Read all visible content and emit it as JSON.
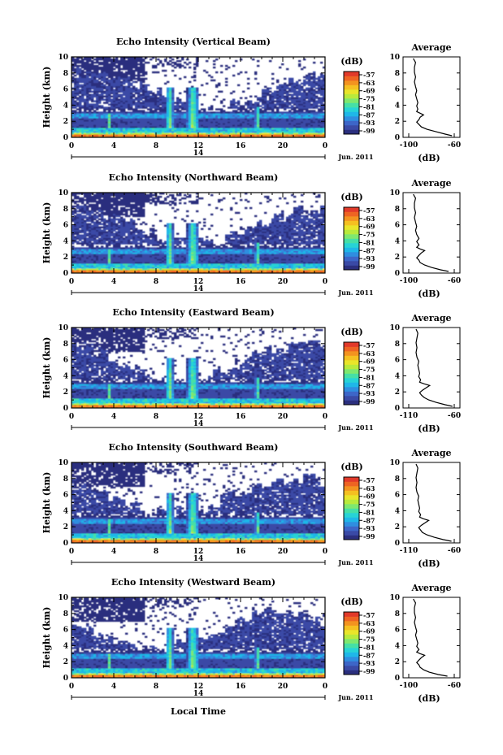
{
  "figure": {
    "xlabel": "Local Time"
  },
  "colorbar": {
    "unit": "(dB)",
    "tick_labels": [
      "-57",
      "-63",
      "-69",
      "-75",
      "-81",
      "-87",
      "-93",
      "-99"
    ],
    "colors": [
      "#2b2f7e",
      "#3a4aa6",
      "#3d66c8",
      "#2f8ee0",
      "#1fb7e8",
      "#27d3d6",
      "#46dfa6",
      "#7ee86f",
      "#b8ea3c",
      "#e9e52a",
      "#f5c021",
      "#f39320",
      "#ee6423",
      "#e23a2a"
    ]
  },
  "chart_data": [
    {
      "type": "heatmap",
      "title": "Echo Intensity (Vertical Beam)",
      "ylabel": "Height (km)",
      "x_ticks": [
        "0",
        "4",
        "8",
        "12",
        "16",
        "20",
        "0"
      ],
      "y_ticks": [
        "0",
        "2",
        "4",
        "6",
        "8",
        "10"
      ],
      "xlim": [
        0,
        24
      ],
      "ylim": [
        0,
        10
      ],
      "date_day": "14",
      "date_month": "Jun. 2011",
      "profile": {
        "title": "Average",
        "xlabel": "(dB)",
        "xlim": [
          -100,
          -60
        ],
        "x_ticks": [
          "-100",
          "-60"
        ],
        "y_ticks": [
          "0",
          "2",
          "4",
          "6",
          "8",
          "10"
        ],
        "height": [
          0.2,
          0.4,
          0.7,
          1.0,
          1.3,
          1.6,
          1.9,
          2.2,
          2.5,
          2.8,
          3.0,
          3.2,
          3.5,
          3.9,
          4.3,
          4.8,
          5.3,
          5.8,
          6.3,
          6.9,
          7.5,
          8.1,
          8.7,
          9.3,
          9.8
        ],
        "value": [
          -62,
          -68,
          -76,
          -84,
          -89,
          -91,
          -93,
          -91,
          -90,
          -87,
          -90,
          -93,
          -92,
          -93,
          -92,
          -93,
          -94,
          -93,
          -94,
          -95,
          -94,
          -95,
          -95,
          -94,
          -96
        ]
      }
    },
    {
      "type": "heatmap",
      "title": "Echo Intensity (Northward Beam)",
      "ylabel": "Height (km)",
      "x_ticks": [
        "0",
        "4",
        "8",
        "12",
        "16",
        "20",
        "0"
      ],
      "y_ticks": [
        "0",
        "2",
        "4",
        "6",
        "8",
        "10"
      ],
      "xlim": [
        0,
        24
      ],
      "ylim": [
        0,
        10
      ],
      "date_day": "14",
      "date_month": "Jun. 2011",
      "profile": {
        "title": "Average",
        "xlabel": "(dB)",
        "xlim": [
          -100,
          -60
        ],
        "x_ticks": [
          "-100",
          "-60"
        ],
        "y_ticks": [
          "0",
          "2",
          "4",
          "6",
          "8",
          "10"
        ],
        "height": [
          0.2,
          0.4,
          0.7,
          1.0,
          1.3,
          1.6,
          1.9,
          2.2,
          2.5,
          2.8,
          3.0,
          3.2,
          3.5,
          3.9,
          4.3,
          4.8,
          5.3,
          5.8,
          6.3,
          6.9,
          7.5,
          8.1,
          8.7,
          9.3,
          9.8
        ],
        "value": [
          -65,
          -72,
          -80,
          -86,
          -90,
          -91,
          -93,
          -91,
          -89,
          -86,
          -90,
          -93,
          -91,
          -93,
          -91,
          -93,
          -94,
          -93,
          -94,
          -95,
          -94,
          -95,
          -95,
          -94,
          -96
        ]
      }
    },
    {
      "type": "heatmap",
      "title": "Echo Intensity (Eastward Beam)",
      "ylabel": "Height (km)",
      "x_ticks": [
        "0",
        "4",
        "8",
        "12",
        "16",
        "20",
        "0"
      ],
      "y_ticks": [
        "0",
        "2",
        "4",
        "6",
        "8",
        "10"
      ],
      "xlim": [
        0,
        24
      ],
      "ylim": [
        0,
        10
      ],
      "date_day": "14",
      "date_month": "Jun. 2011",
      "profile": {
        "title": "Average",
        "xlabel": "(dB)",
        "xlim": [
          -110,
          -60
        ],
        "x_ticks": [
          "-110",
          "-60"
        ],
        "y_ticks": [
          "0",
          "2",
          "4",
          "6",
          "8",
          "10"
        ],
        "height": [
          0.2,
          0.4,
          0.7,
          1.0,
          1.3,
          1.6,
          1.9,
          2.2,
          2.5,
          2.8,
          3.0,
          3.2,
          3.5,
          3.9,
          4.3,
          4.8,
          5.3,
          5.8,
          6.3,
          6.9,
          7.5,
          8.1,
          8.7,
          9.3,
          9.8
        ],
        "value": [
          -62,
          -70,
          -80,
          -88,
          -93,
          -96,
          -98,
          -95,
          -91,
          -87,
          -93,
          -98,
          -97,
          -99,
          -98,
          -99,
          -100,
          -99,
          -101,
          -102,
          -101,
          -102,
          -101,
          -100,
          -102
        ]
      }
    },
    {
      "type": "heatmap",
      "title": "Echo Intensity (Southward Beam)",
      "ylabel": "Height (km)",
      "x_ticks": [
        "0",
        "4",
        "8",
        "12",
        "16",
        "20",
        "0"
      ],
      "y_ticks": [
        "0",
        "2",
        "4",
        "6",
        "8",
        "10"
      ],
      "xlim": [
        0,
        24
      ],
      "ylim": [
        0,
        10
      ],
      "date_day": "14",
      "date_month": "Jun. 2011",
      "profile": {
        "title": "Average",
        "xlabel": "(dB)",
        "xlim": [
          -110,
          -60
        ],
        "x_ticks": [
          "-110",
          "-60"
        ],
        "y_ticks": [
          "0",
          "2",
          "4",
          "6",
          "8",
          "10"
        ],
        "height": [
          0.2,
          0.4,
          0.7,
          1.0,
          1.3,
          1.6,
          1.9,
          2.2,
          2.5,
          2.8,
          3.0,
          3.2,
          3.5,
          3.9,
          4.3,
          4.8,
          5.3,
          5.8,
          6.3,
          6.9,
          7.5,
          8.1,
          8.7,
          9.3,
          9.8
        ],
        "value": [
          -63,
          -72,
          -82,
          -90,
          -95,
          -97,
          -99,
          -96,
          -92,
          -88,
          -94,
          -98,
          -97,
          -99,
          -98,
          -99,
          -100,
          -99,
          -101,
          -102,
          -101,
          -102,
          -101,
          -100,
          -102
        ]
      }
    },
    {
      "type": "heatmap",
      "title": "Echo Intensity (Westward Beam)",
      "ylabel": "Height (km)",
      "x_ticks": [
        "0",
        "4",
        "8",
        "12",
        "16",
        "20",
        "0"
      ],
      "y_ticks": [
        "0",
        "2",
        "4",
        "6",
        "8",
        "10"
      ],
      "xlim": [
        0,
        24
      ],
      "ylim": [
        0,
        10
      ],
      "date_day": "14",
      "date_month": "Jun. 2011",
      "profile": {
        "title": "Average",
        "xlabel": "(dB)",
        "xlim": [
          -100,
          -60
        ],
        "x_ticks": [
          "-100",
          "-60"
        ],
        "y_ticks": [
          "0",
          "2",
          "4",
          "6",
          "8",
          "10"
        ],
        "height": [
          0.2,
          0.4,
          0.7,
          1.0,
          1.3,
          1.6,
          1.9,
          2.2,
          2.5,
          2.8,
          3.0,
          3.2,
          3.5,
          3.9,
          4.3,
          4.8,
          5.3,
          5.8,
          6.3,
          6.9,
          7.5,
          8.1,
          8.7,
          9.3,
          9.8
        ],
        "value": [
          -66,
          -74,
          -82,
          -87,
          -90,
          -91,
          -93,
          -91,
          -89,
          -86,
          -90,
          -93,
          -91,
          -93,
          -92,
          -93,
          -94,
          -93,
          -94,
          -95,
          -94,
          -95,
          -95,
          -94,
          -96
        ]
      }
    }
  ]
}
